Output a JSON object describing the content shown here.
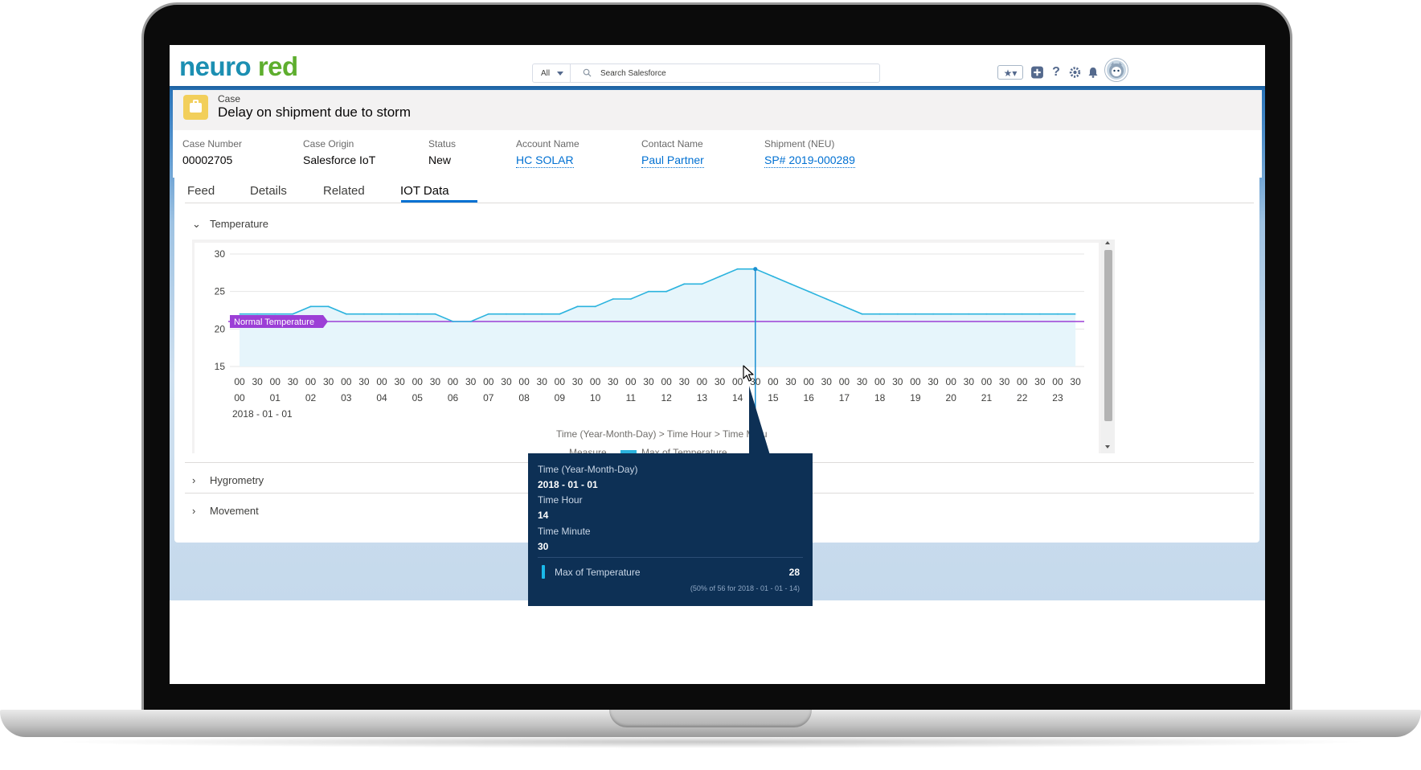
{
  "header": {
    "logo_part1": "neuro",
    "logo_part2": "red",
    "search_scope": "All",
    "search_placeholder": "Search Salesforce"
  },
  "record": {
    "object_label": "Case",
    "title": "Delay on shipment due to storm",
    "fields": [
      {
        "label": "Case Number",
        "value": "00002705",
        "link": false
      },
      {
        "label": "Case Origin",
        "value": "Salesforce IoT",
        "link": false
      },
      {
        "label": "Status",
        "value": "New",
        "link": false
      },
      {
        "label": "Account Name",
        "value": "HC SOLAR",
        "link": true
      },
      {
        "label": "Contact Name",
        "value": "Paul Partner",
        "link": true
      },
      {
        "label": "Shipment (NEU)",
        "value": "SP# 2019-000289",
        "link": true
      }
    ]
  },
  "tabs": [
    {
      "label": "Feed",
      "active": false
    },
    {
      "label": "Details",
      "active": false
    },
    {
      "label": "Related",
      "active": false
    },
    {
      "label": "IOT Data",
      "active": true
    }
  ],
  "sections": {
    "temperature": "Temperature",
    "hygrometry": "Hygrometry",
    "movement": "Movement"
  },
  "chart_data": {
    "type": "line",
    "ylim": [
      15,
      30
    ],
    "y_ticks": [
      15,
      20,
      25,
      30
    ],
    "x_minutes": [
      "00",
      "30",
      "00",
      "30",
      "00",
      "30",
      "00",
      "30",
      "00",
      "30",
      "00",
      "30",
      "00",
      "30",
      "00",
      "30",
      "00",
      "30",
      "00",
      "30",
      "00",
      "30",
      "00",
      "30",
      "00",
      "30",
      "00",
      "30",
      "00",
      "30",
      "00",
      "30",
      "00",
      "30",
      "00",
      "30",
      "00",
      "30",
      "00",
      "30",
      "00",
      "30",
      "00",
      "30",
      "00",
      "30",
      "00",
      "30"
    ],
    "x_hours": [
      "00",
      "01",
      "02",
      "03",
      "04",
      "05",
      "06",
      "07",
      "08",
      "09",
      "10",
      "11",
      "12",
      "13",
      "14",
      "15",
      "16",
      "17",
      "18",
      "19",
      "20",
      "21",
      "22",
      "23"
    ],
    "x_date": "2018 - 01 - 01",
    "xlabel": "Time (Year-Month-Day) > Time Hour > Time Minu",
    "legend_label": "Measure",
    "series": [
      {
        "name": "Max of Temperature",
        "color": "#2bb3de",
        "values": [
          22,
          22,
          22,
          22,
          23,
          23,
          22,
          22,
          22,
          22,
          22,
          22,
          21,
          21,
          22,
          22,
          22,
          22,
          22,
          23,
          23,
          24,
          24,
          25,
          25,
          26,
          26,
          27,
          28,
          28,
          27,
          26,
          25,
          24,
          23,
          22,
          22,
          22,
          22,
          22,
          22,
          22,
          22,
          22,
          22,
          22,
          22,
          22
        ]
      }
    ],
    "reference_line": {
      "label": "Normal Temperature",
      "value": 21,
      "color": "#9c3fd6"
    },
    "tooltip_index": 29
  },
  "tooltip": {
    "label1": "Time (Year-Month-Day)",
    "value1": "2018 - 01 - 01",
    "label2": "Time Hour",
    "value2": "14",
    "label3": "Time Minute",
    "value3": "30",
    "measure_label": "Max of Temperature",
    "measure_value": "28",
    "footnote": "(50% of 56 for 2018 - 01 - 01 - 14)"
  }
}
